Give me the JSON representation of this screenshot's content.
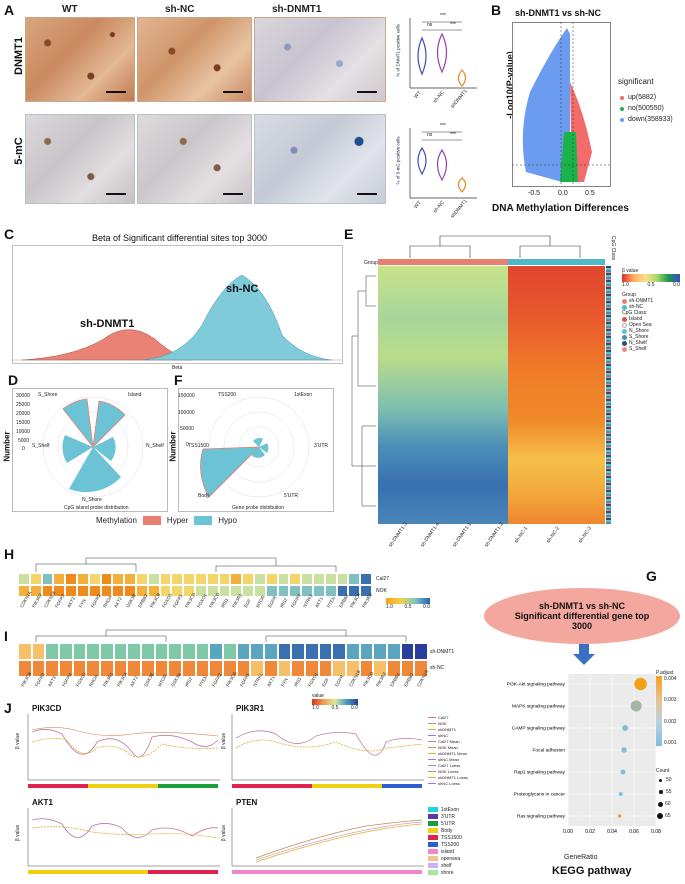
{
  "panels": {
    "A": "A",
    "B": "B",
    "C": "C",
    "D": "D",
    "E": "E",
    "F": "F",
    "G": "G",
    "H": "H",
    "I": "I",
    "J": "J"
  },
  "panelA": {
    "col_headers": [
      "WT",
      "sh-NC",
      "sh-DNMT1"
    ],
    "row_labels": [
      "DNMT1",
      "5-mC"
    ],
    "ylabel_top": "% of DNMT1 positive cells",
    "ylabel_bottom": "% of 5-mC positive cells",
    "sig_labels": [
      "***",
      "ns",
      "***",
      "***",
      "ns",
      "***"
    ],
    "x_ticks": [
      "WT",
      "sh-NC",
      "shDNMT1"
    ]
  },
  "panelB": {
    "title": "sh-DNMT1 vs sh-NC",
    "ylabel": "-Log10(P-value)",
    "xlabel": "DNA Methylation Differences",
    "x_ticks": [
      "-0.5",
      "0.0",
      "0.5"
    ],
    "legend_title": "significant",
    "legend": [
      {
        "label": "up(5882)",
        "color": "#f36b6b"
      },
      {
        "label": "no(500550)",
        "color": "#19b34a"
      },
      {
        "label": "down(358933)",
        "color": "#6b9cf0"
      }
    ]
  },
  "panelC": {
    "title": "Beta of Significant differential sites top 3000",
    "labels": [
      "sh-NC",
      "sh-DNMT1"
    ],
    "x_ticks": [
      "0.0",
      "0.2",
      "0.4",
      "0.6",
      "0.8",
      "1.0"
    ],
    "xlabel": "Beta"
  },
  "panelD": {
    "categories": [
      "S_Shore",
      "Island",
      "N_Shelf",
      "N_Shore",
      "S_Shelf"
    ],
    "y_ticks": [
      "30000",
      "25000",
      "20000",
      "15000",
      "10000",
      "5000",
      "0"
    ],
    "ylabel": "Number",
    "caption": "CpG island probe distribution"
  },
  "panelF": {
    "categories": [
      "TSS200",
      "1stExon",
      "3'UTR",
      "5'UTR",
      "Body",
      "TSS1500"
    ],
    "y_ticks": [
      "150000",
      "100000",
      "50000",
      "0"
    ],
    "ylabel": "Number",
    "caption": "Gene probe distribution"
  },
  "legendDF": {
    "title": "Methylation",
    "items": [
      {
        "label": "Hyper",
        "color": "#e8806f"
      },
      {
        "label": "Hypo",
        "color": "#6cc3d5"
      }
    ]
  },
  "panelE": {
    "group_label": "Group",
    "cpg_label": "CpG Class",
    "samples": [
      "sh-DNMT1-3",
      "sh-DNMT1-4",
      "sh-DNMT1-1",
      "sh-DNMT1-2",
      "sh-NC-1",
      "sh-NC-2",
      "sh-NC-3"
    ],
    "beta_label": "β value",
    "beta_ticks": [
      "1.0",
      "0.5",
      "0.0"
    ],
    "group_items": [
      {
        "label": "sh-DNMT1",
        "color": "#e8806f"
      },
      {
        "label": "sh-NC",
        "color": "#4fb9c8"
      }
    ],
    "cpg_title": "CpG Class:",
    "cpg_items": [
      {
        "label": "Island",
        "color": "#d9534f"
      },
      {
        "label": "Open Sea",
        "color": "#f5f5f5"
      },
      {
        "label": "N_Shore",
        "color": "#5bc0de"
      },
      {
        "label": "S_Shore",
        "color": "#4a90a4"
      },
      {
        "label": "N_Shelf",
        "color": "#2f4f6f"
      },
      {
        "label": "S_Shelf",
        "color": "#f08a7a"
      }
    ]
  },
  "panelH": {
    "rows": [
      "Cal27",
      "NOK"
    ],
    "genes": [
      "CDKN1A",
      "PIK3R2",
      "CDKN1B",
      "FGFR3",
      "AKT3",
      "FYN",
      "FGFR2",
      "RHOA",
      "AKT2",
      "GSK3B",
      "ERBB2",
      "PIK3CB",
      "FOXO3",
      "FGFR1",
      "PIK3CD",
      "FOXO1",
      "PIK3CG",
      "IRS1",
      "PIK3R1",
      "EGF",
      "MTOR",
      "EGFR",
      "IRS2",
      "FGFR4",
      "NTRK1",
      "AKT1",
      "PTEN",
      "ERBB4",
      "PIK3CA",
      "PIK3R3"
    ],
    "scale_ticks": [
      "1.0",
      "0.5",
      "0.0"
    ]
  },
  "panelI": {
    "rows": [
      "sh-DNMT1",
      "sh-NC"
    ],
    "genes": [
      "PIK3CB",
      "FGFR3",
      "AKT3",
      "FGFR4",
      "FOXO3",
      "RHOA",
      "PIK3R1",
      "PIK3CA",
      "AKT2",
      "GSK3B",
      "MTOR",
      "GSK3A",
      "IRS2",
      "PTEN",
      "FGFR2",
      "PIK3CG",
      "FGFR1",
      "NTRK1",
      "AKT1",
      "FYN",
      "IRS1",
      "FOXO1",
      "EGF",
      "EGFR",
      "CDKN1B",
      "PIK3CD",
      "PIK3R2",
      "ERBB4",
      "ERBB2",
      "CDKN1R"
    ],
    "scale_label": "value",
    "scale_ticks": [
      "1.0",
      "0.5",
      "0.0"
    ]
  },
  "panelJ": {
    "plots": [
      "PIK3CD",
      "PIK3R1",
      "AKT1",
      "PTEN"
    ],
    "ylabel": "β value",
    "line_legend": [
      "Cal27",
      "NOK",
      "shDNMT1",
      "shNC",
      "Cal27 Mean",
      "NOK Mean",
      "shDNMT1 Mean",
      "shNC Mean",
      "Cal27 Loess",
      "NOK Loess",
      "shDNMT1 Loess",
      "shNC Loess"
    ],
    "region_legend": [
      {
        "label": "1stExon",
        "color": "#1fd4e0"
      },
      {
        "label": "3'UTR",
        "color": "#5b3b9e"
      },
      {
        "label": "5'UTR",
        "color": "#1a9e3b"
      },
      {
        "label": "Body",
        "color": "#f0d010"
      },
      {
        "label": "TSS1500",
        "color": "#e0224e"
      },
      {
        "label": "TSS200",
        "color": "#2b5fd0"
      },
      {
        "label": "island",
        "color": "#ef88c8"
      },
      {
        "label": "opensea",
        "color": "#f5c08a"
      },
      {
        "label": "shelf",
        "color": "#c9b4f0"
      },
      {
        "label": "shore",
        "color": "#a9e5a0"
      }
    ]
  },
  "panelG": {
    "ellipse_title": "sh-DNMT1 vs sh-NC",
    "ellipse_sub": "Significant differential gene top 3000",
    "xlabel": "GeneRatio",
    "title": "KEGG pathway",
    "padj_label": "P.adjust",
    "padj_ticks": [
      "0.004",
      "0.003",
      "0.002",
      "0.001"
    ],
    "count_label": "Count",
    "count_ticks": [
      "50",
      "55",
      "60",
      "65"
    ],
    "x_ticks": [
      "0.00",
      "0.02",
      "0.04",
      "0.06",
      "0.08"
    ]
  },
  "chart_data": [
    {
      "type": "scatter",
      "panel": "G",
      "title": "KEGG pathway",
      "xlabel": "GeneRatio",
      "categories": [
        "PI3K-Akt signaling pathway",
        "MAPK signaling pathway",
        "CAMP signaling pathway",
        "Focal adhesion",
        "Rap1 signaling pathway",
        "Proteoglycans in cancer",
        "Ras signaling pathway"
      ],
      "gene_ratio": [
        0.066,
        0.062,
        0.052,
        0.051,
        0.05,
        0.048,
        0.047
      ],
      "count": [
        66,
        63,
        53,
        52,
        51,
        49,
        48
      ],
      "p_adjust": [
        0.004,
        0.0015,
        0.0008,
        0.0006,
        0.0005,
        0.0004,
        0.0035
      ],
      "xlim": [
        0.0,
        0.08
      ]
    },
    {
      "type": "bar",
      "panel": "D",
      "categories": [
        "S_Shore",
        "Island",
        "N_Shelf",
        "N_Shore",
        "S_Shelf"
      ],
      "series": [
        {
          "name": "Hypo",
          "values": [
            24000,
            20000,
            9000,
            25000,
            12000
          ]
        },
        {
          "name": "Hyper",
          "values": [
            200,
            300,
            100,
            200,
            100
          ]
        }
      ]
    },
    {
      "type": "bar",
      "panel": "F",
      "categories": [
        "TSS200",
        "1stExon",
        "3'UTR",
        "5'UTR",
        "Body",
        "TSS1500"
      ],
      "series": [
        {
          "name": "Hypo",
          "values": [
            4000,
            3000,
            8000,
            10000,
            140000,
            12000
          ]
        },
        {
          "name": "Hyper",
          "values": [
            50,
            30,
            80,
            100,
            800,
            100
          ]
        }
      ]
    },
    {
      "type": "scatter",
      "panel": "A",
      "ylabel": "% of DNMT1 positive cells",
      "categories": [
        "WT",
        "sh-NC",
        "shDNMT1"
      ],
      "values": [
        45,
        47,
        9
      ],
      "ylim": [
        0,
        60
      ]
    },
    {
      "type": "scatter",
      "panel": "A",
      "ylabel": "% of 5-mC positive cells",
      "categories": [
        "WT",
        "sh-NC",
        "shDNMT1"
      ],
      "values": [
        62,
        58,
        22
      ],
      "ylim": [
        0,
        80
      ]
    }
  ]
}
